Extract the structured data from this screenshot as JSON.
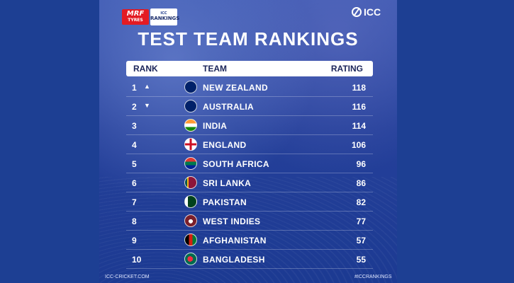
{
  "branding": {
    "sponsor_main": "MRF",
    "sponsor_sub": "TYRES",
    "rankings_pre": "ICC",
    "rankings_label": "RANKINGS",
    "icc_label": "ICC"
  },
  "title": "TEST TEAM RANKINGS",
  "table": {
    "headers": {
      "rank": "RANK",
      "team": "TEAM",
      "rating": "RATING"
    },
    "rows": [
      {
        "rank": "1",
        "move": "▲",
        "team": "NEW ZEALAND",
        "rating": "118",
        "flag_icon": "new-zealand-flag-icon"
      },
      {
        "rank": "2",
        "move": "▼",
        "team": "AUSTRALIA",
        "rating": "116",
        "flag_icon": "australia-flag-icon"
      },
      {
        "rank": "3",
        "move": "",
        "team": "INDIA",
        "rating": "114",
        "flag_icon": "india-flag-icon"
      },
      {
        "rank": "4",
        "move": "",
        "team": "ENGLAND",
        "rating": "106",
        "flag_icon": "england-flag-icon"
      },
      {
        "rank": "5",
        "move": "",
        "team": "SOUTH AFRICA",
        "rating": "96",
        "flag_icon": "south-africa-flag-icon"
      },
      {
        "rank": "6",
        "move": "",
        "team": "SRI LANKA",
        "rating": "86",
        "flag_icon": "sri-lanka-flag-icon"
      },
      {
        "rank": "7",
        "move": "",
        "team": "PAKISTAN",
        "rating": "82",
        "flag_icon": "pakistan-flag-icon"
      },
      {
        "rank": "8",
        "move": "",
        "team": "WEST INDIES",
        "rating": "77",
        "flag_icon": "west-indies-flag-icon"
      },
      {
        "rank": "9",
        "move": "",
        "team": "AFGHANISTAN",
        "rating": "57",
        "flag_icon": "afghanistan-flag-icon"
      },
      {
        "rank": "10",
        "move": "",
        "team": "BANGLADESH",
        "rating": "55",
        "flag_icon": "bangladesh-flag-icon"
      }
    ]
  },
  "footer": {
    "left": "ICC-CRICKET.COM",
    "right": "#ICCRANKINGS"
  },
  "colors": {
    "background": "#1d3f93",
    "header_bg": "#ffffff",
    "header_text": "#1b2559",
    "sponsor_red": "#e31b23"
  }
}
